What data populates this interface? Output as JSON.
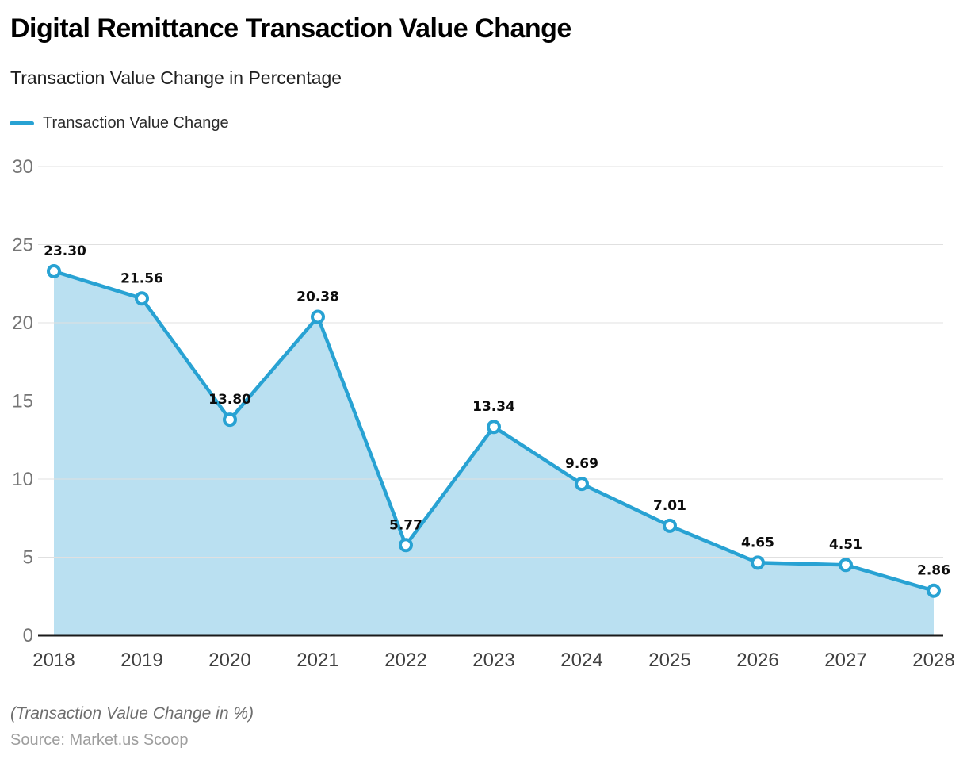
{
  "header": {
    "title": "Digital Remittance Transaction Value Change",
    "subtitle": "Transaction Value Change in Percentage"
  },
  "legend": {
    "label": "Transaction Value Change"
  },
  "chart_data": {
    "type": "area",
    "title": "Digital Remittance Transaction Value Change",
    "subtitle": "Transaction Value Change in Percentage",
    "categories": [
      "2018",
      "2019",
      "2020",
      "2021",
      "2022",
      "2023",
      "2024",
      "2025",
      "2026",
      "2027",
      "2028"
    ],
    "series": [
      {
        "name": "Transaction Value Change",
        "values": [
          23.3,
          21.56,
          13.8,
          20.38,
          5.77,
          13.34,
          9.69,
          7.01,
          4.65,
          4.51,
          2.86
        ]
      }
    ],
    "xlabel": "",
    "ylabel": "",
    "ylim": [
      0,
      30
    ],
    "ytick_step": 5,
    "grid": true,
    "legend_position": "top-left",
    "data_labels": true,
    "colors": {
      "line": "#28A2D3",
      "area": "#BAE0F1",
      "marker_fill": "#FFFFFF",
      "grid": "#E0E0E0",
      "axis": "#1A1A1A",
      "data_label": "#0D0D0D",
      "ytick": "#757575",
      "xtick": "#404040"
    }
  },
  "footer": {
    "note": "(Transaction Value Change in %)",
    "source": "Source: Market.us Scoop"
  }
}
